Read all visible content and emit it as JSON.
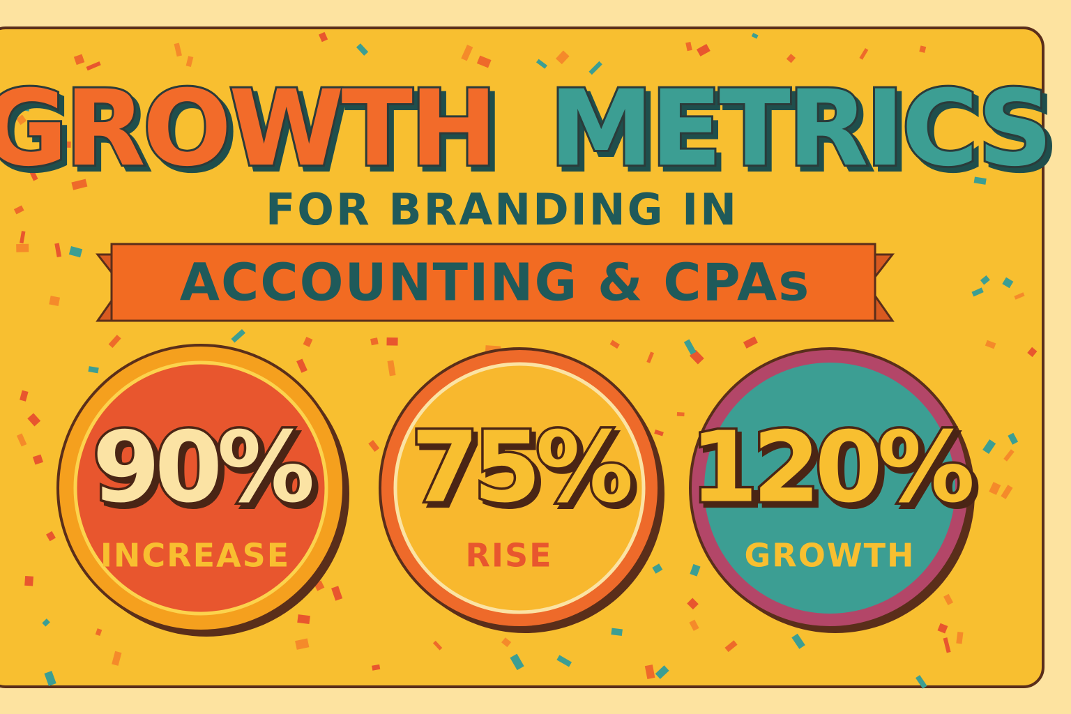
{
  "header": {
    "title_part1": "GROWTH",
    "title_part2": "METRICS",
    "subtitle": "FOR BRANDING IN",
    "banner": "ACCOUNTING & CPAs"
  },
  "badges": [
    {
      "value": "90%",
      "label": "INCREASE"
    },
    {
      "value": "75%",
      "label": "RISE"
    },
    {
      "value": "120%",
      "label": "GROWTH"
    }
  ]
}
